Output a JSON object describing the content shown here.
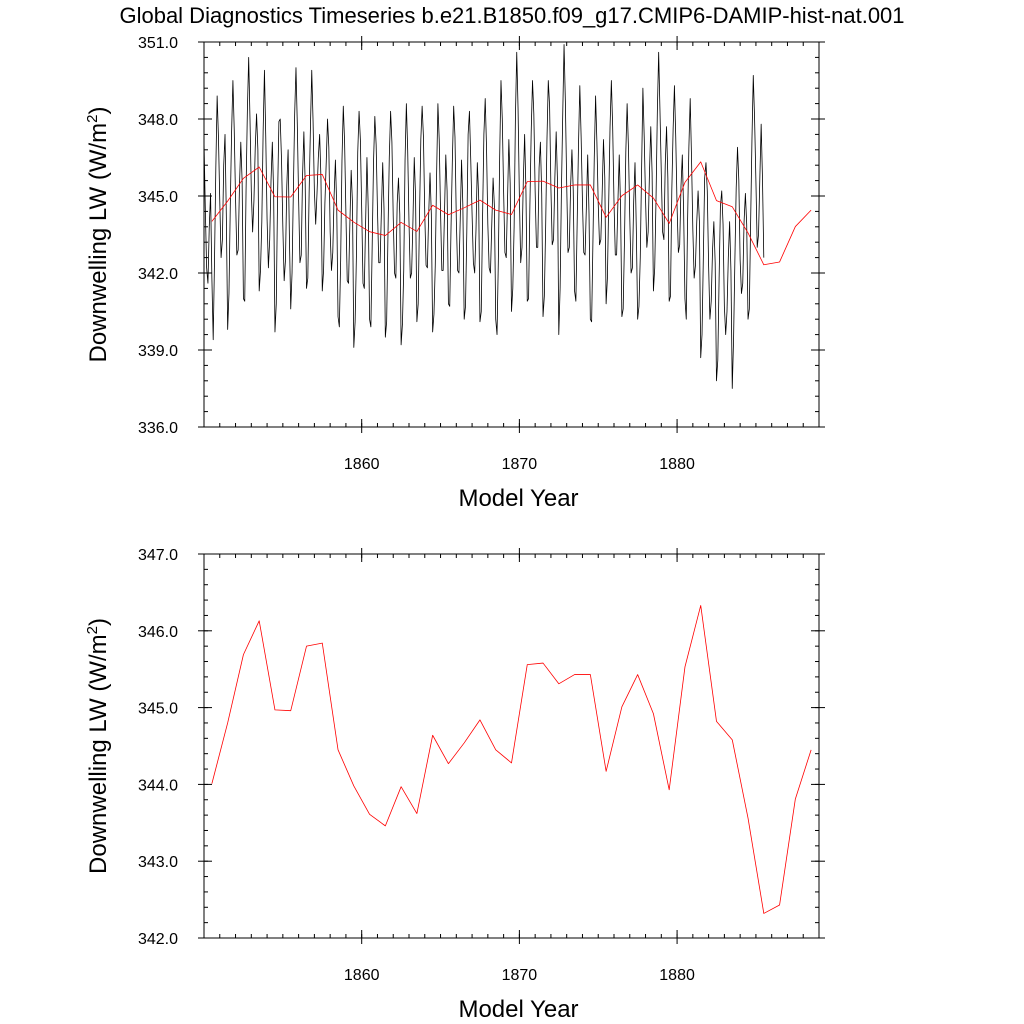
{
  "figure": {
    "title": "Global Diagnostics Timeseries b.e21.B1850.f09_g17.CMIP6-DAMIP-hist-nat.001"
  },
  "chart_data": [
    {
      "type": "line",
      "title": "Global Diagnostics Timeseries b.e21.B1850.f09_g17.CMIP6-DAMIP-hist-nat.001",
      "xlabel": "Model Year",
      "ylabel": "Downwelling LW (W/m2)",
      "ylabel_main": "Downwelling LW (W/m",
      "ylabel_sup": "2",
      "ylabel_close": ")",
      "xlim": [
        1850,
        1889
      ],
      "ylim": [
        336.0,
        351.0
      ],
      "x_ticks": [
        1860,
        1870,
        1880
      ],
      "x_tick_labels": [
        "1860",
        "1870",
        "1880"
      ],
      "y_ticks": [
        336.0,
        339.0,
        342.0,
        345.0,
        348.0,
        351.0
      ],
      "y_tick_labels": [
        "336.0",
        "339.0",
        "342.0",
        "345.0",
        "348.0",
        "351.0"
      ],
      "grid": false,
      "series": [
        {
          "color": "#000000",
          "x_start": 1850.0,
          "x_step": 0.08333,
          "values": [
            347.2,
            344.5,
            342.2,
            341.6,
            343.8,
            345.1,
            341.8,
            339.4,
            342.5,
            346.1,
            348.9,
            347.3,
            344.8,
            342.6,
            343.3,
            346.2,
            347.4,
            344.2,
            339.8,
            341.2,
            344.6,
            347.5,
            349.5,
            347.6,
            344.9,
            342.7,
            342.9,
            345.4,
            347.1,
            345.6,
            341.0,
            340.9,
            345.2,
            348.3,
            350.4,
            348.0,
            345.2,
            343.6,
            344.8,
            346.9,
            348.2,
            346.8,
            341.3,
            342.1,
            344.0,
            347.5,
            349.9,
            347.3,
            344.1,
            342.2,
            343.3,
            345.6,
            347.1,
            345.1,
            339.7,
            340.8,
            345.0,
            347.9,
            348.0,
            346.4,
            343.8,
            341.7,
            342.5,
            345.4,
            346.8,
            343.4,
            340.6,
            342.0,
            345.2,
            348.2,
            350.0,
            347.8,
            344.9,
            342.4,
            342.7,
            345.8,
            347.5,
            345.5,
            341.4,
            341.8,
            345.1,
            347.7,
            349.9,
            347.9,
            345.2,
            343.9,
            345.1,
            346.5,
            347.4,
            345.7,
            341.3,
            342.1,
            344.7,
            346.3,
            348.0,
            346.9,
            343.6,
            342.1,
            342.8,
            345.0,
            346.4,
            344.6,
            340.3,
            339.9,
            342.5,
            346.4,
            348.5,
            347.1,
            344.3,
            341.7,
            341.6,
            343.9,
            346.0,
            344.7,
            339.1,
            340.1,
            342.7,
            346.7,
            348.3,
            347.2,
            344.5,
            341.6,
            341.4,
            344.0,
            346.5,
            344.5,
            340.2,
            339.9,
            343.1,
            346.3,
            348.1,
            347.0,
            344.5,
            342.4,
            342.4,
            344.4,
            346.3,
            344.5,
            339.5,
            340.1,
            343.5,
            346.5,
            348.3,
            347.1,
            344.2,
            342.0,
            341.8,
            344.7,
            345.7,
            344.3,
            339.2,
            340.0,
            342.1,
            346.4,
            348.6,
            346.8,
            344.0,
            341.8,
            342.0,
            344.0,
            346.5,
            345.0,
            340.1,
            340.8,
            344.2,
            347.2,
            348.5,
            347.3,
            344.3,
            342.3,
            342.2,
            344.3,
            345.9,
            344.3,
            339.7,
            340.4,
            342.3,
            345.8,
            348.6,
            347.2,
            344.4,
            342.1,
            342.1,
            344.3,
            346.6,
            345.2,
            340.8,
            340.7,
            343.8,
            346.4,
            348.5,
            347.3,
            344.1,
            342.1,
            342.0,
            344.1,
            346.4,
            344.6,
            340.2,
            340.7,
            343.6,
            347.4,
            348.3,
            346.4,
            344.3,
            342.4,
            342.0,
            343.7,
            346.3,
            345.0,
            340.1,
            340.5,
            344.2,
            347.4,
            348.8,
            346.9,
            343.9,
            342.2,
            342.0,
            343.9,
            345.7,
            344.6,
            340.2,
            339.6,
            342.5,
            346.5,
            349.5,
            348.0,
            345.2,
            342.8,
            342.6,
            344.9,
            347.2,
            345.5,
            340.5,
            341.4,
            343.8,
            348.1,
            350.6,
            348.4,
            345.0,
            342.4,
            343.0,
            345.6,
            347.4,
            345.2,
            340.9,
            341.0,
            344.6,
            347.5,
            349.5,
            348.2,
            345.2,
            343.0,
            343.0,
            346.1,
            347.1,
            345.1,
            340.3,
            341.1,
            343.8,
            347.2,
            349.5,
            348.5,
            345.3,
            343.1,
            343.3,
            345.7,
            347.5,
            345.6,
            339.6,
            341.4,
            345.2,
            348.2,
            350.9,
            348.7,
            345.5,
            342.8,
            343.0,
            345.4,
            346.8,
            345.2,
            341.3,
            340.9,
            344.0,
            347.0,
            349.3,
            347.3,
            344.8,
            342.8,
            342.7,
            344.6,
            346.6,
            344.3,
            340.2,
            340.1,
            343.3,
            346.5,
            348.9,
            347.1,
            344.7,
            343.1,
            343.3,
            345.1,
            347.2,
            345.7,
            340.8,
            341.8,
            344.8,
            347.7,
            349.5,
            347.7,
            344.8,
            342.7,
            342.7,
            344.8,
            346.6,
            344.6,
            340.3,
            340.6,
            343.3,
            346.7,
            348.6,
            346.9,
            344.2,
            342.0,
            342.2,
            344.8,
            346.3,
            343.7,
            340.2,
            340.7,
            342.6,
            346.0,
            349.2,
            347.3,
            344.9,
            343.0,
            343.6,
            345.9,
            347.7,
            345.9,
            341.3,
            342.2,
            344.9,
            348.3,
            350.6,
            348.3,
            345.9,
            343.6,
            343.3,
            346.2,
            347.7,
            345.7,
            340.9,
            341.1,
            345.2,
            347.6,
            349.3,
            347.3,
            344.6,
            342.8,
            343.1,
            345.4,
            346.6,
            344.4,
            341.0,
            340.2,
            344.0,
            346.9,
            348.8,
            346.5,
            343.7,
            341.8,
            342.3,
            344.0,
            345.2,
            344.0,
            338.7,
            339.6,
            342.6,
            345.7,
            346.3,
            345.2,
            342.3,
            340.2,
            340.9,
            342.9,
            344.0,
            342.4,
            337.8,
            338.6,
            341.8,
            344.6,
            345.2,
            343.9,
            340.7,
            339.6,
            340.5,
            342.6,
            344.0,
            342.1,
            337.5,
            339.4,
            342.5,
            345.3,
            346.9,
            345.6,
            342.5,
            341.2,
            341.6,
            344.0,
            345.1,
            343.9,
            340.2,
            340.6,
            344.0,
            347.2,
            349.7,
            348.0,
            345.6,
            343.0,
            343.5,
            345.7,
            347.8,
            345.7,
            342.6
          ]
        },
        {
          "color": "#ff0000",
          "x": [
            1850.5,
            1851.5,
            1852.5,
            1853.5,
            1854.5,
            1855.5,
            1856.5,
            1857.5,
            1858.5,
            1859.5,
            1860.5,
            1861.5,
            1862.5,
            1863.5,
            1864.5,
            1865.5,
            1866.5,
            1867.5,
            1868.5,
            1869.5,
            1870.5,
            1871.5,
            1872.5,
            1873.5,
            1874.5,
            1875.5,
            1876.5,
            1877.5,
            1878.5,
            1879.5,
            1880.5,
            1881.5,
            1882.5,
            1883.5,
            1884.5,
            1885.5,
            1886.5,
            1887.5,
            1888.5
          ],
          "values": [
            344.01,
            344.8,
            345.69,
            346.13,
            344.97,
            344.96,
            345.8,
            345.84,
            344.45,
            343.98,
            343.61,
            343.46,
            343.97,
            343.62,
            344.64,
            344.27,
            344.54,
            344.84,
            344.45,
            344.28,
            345.56,
            345.58,
            345.31,
            345.43,
            345.43,
            344.17,
            345.01,
            345.43,
            344.92,
            343.93,
            345.53,
            346.33,
            344.82,
            344.58,
            343.56,
            342.32,
            342.43,
            343.81,
            344.45
          ]
        }
      ]
    },
    {
      "type": "line",
      "xlabel": "Model Year",
      "ylabel": "Downwelling LW (W/m2)",
      "ylabel_main": "Downwelling LW (W/m",
      "ylabel_sup": "2",
      "ylabel_close": ")",
      "xlim": [
        1850,
        1889
      ],
      "ylim": [
        342.0,
        347.0
      ],
      "x_ticks": [
        1860,
        1870,
        1880
      ],
      "x_tick_labels": [
        "1860",
        "1870",
        "1880"
      ],
      "y_ticks": [
        342.0,
        343.0,
        344.0,
        345.0,
        346.0,
        347.0
      ],
      "y_tick_labels": [
        "342.0",
        "343.0",
        "344.0",
        "345.0",
        "346.0",
        "347.0"
      ],
      "grid": false,
      "series": [
        {
          "color": "#ff0000",
          "x": [
            1850.5,
            1851.5,
            1852.5,
            1853.5,
            1854.5,
            1855.5,
            1856.5,
            1857.5,
            1858.5,
            1859.5,
            1860.5,
            1861.5,
            1862.5,
            1863.5,
            1864.5,
            1865.5,
            1866.5,
            1867.5,
            1868.5,
            1869.5,
            1870.5,
            1871.5,
            1872.5,
            1873.5,
            1874.5,
            1875.5,
            1876.5,
            1877.5,
            1878.5,
            1879.5,
            1880.5,
            1881.5,
            1882.5,
            1883.5,
            1884.5,
            1885.5,
            1886.5,
            1887.5,
            1888.5
          ],
          "values": [
            344.01,
            344.8,
            345.69,
            346.13,
            344.97,
            344.96,
            345.8,
            345.84,
            344.45,
            343.98,
            343.61,
            343.46,
            343.97,
            343.62,
            344.64,
            344.27,
            344.54,
            344.84,
            344.45,
            344.28,
            345.56,
            345.58,
            345.31,
            345.43,
            345.43,
            344.17,
            345.01,
            345.43,
            344.92,
            343.93,
            345.53,
            346.33,
            344.82,
            344.58,
            343.56,
            342.32,
            342.43,
            343.81,
            344.45
          ]
        }
      ]
    }
  ]
}
